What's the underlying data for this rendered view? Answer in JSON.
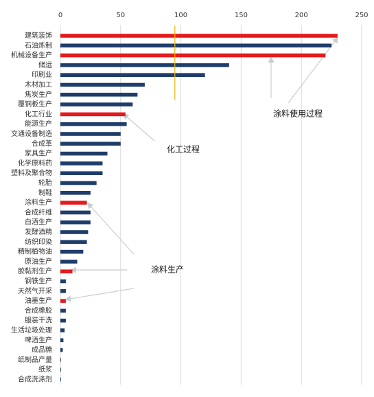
{
  "chart_data": {
    "type": "bar",
    "orientation": "horizontal",
    "categories": [
      "建筑装饰",
      "石油炼制",
      "机械设备生产",
      "储运",
      "印刷业",
      "木材加工",
      "焦炭生产",
      "覆铜板生产",
      "化工行业",
      "能源生产",
      "交通设备制造",
      "合成革",
      "家具生产",
      "化学原料药",
      "塑料及聚合物",
      "轮胎",
      "制鞋",
      "涂料生产",
      "合成纤维",
      "白酒生产",
      "发酵酒精",
      "纺织印染",
      "精制植物油",
      "原油生产",
      "胶黏剂生产",
      "钢铁生产",
      "天然气开采",
      "油墨生产",
      "合成橡胶",
      "服装干洗",
      "生活垃圾处理",
      "啤酒生产",
      "成品糖",
      "纸制品产量",
      "纸浆",
      "合成洗涤剂"
    ],
    "values": [
      230,
      225,
      220,
      140,
      120,
      70,
      64,
      60,
      54,
      55,
      50,
      50,
      39,
      35,
      35,
      30,
      25,
      22,
      25,
      25,
      23,
      22,
      19,
      14,
      10,
      4.5,
      4.5,
      4.5,
      4.5,
      4.5,
      3.5,
      2.5,
      2,
      0.5,
      0.5,
      0.5
    ],
    "colors": [
      "#e31a1c",
      "#1f3d6b",
      "#e31a1c",
      "#1f3d6b",
      "#1f3d6b",
      "#1f3d6b",
      "#1f3d6b",
      "#1f3d6b",
      "#e31a1c",
      "#1f3d6b",
      "#1f3d6b",
      "#1f3d6b",
      "#1f3d6b",
      "#1f3d6b",
      "#1f3d6b",
      "#1f3d6b",
      "#1f3d6b",
      "#e31a1c",
      "#1f3d6b",
      "#1f3d6b",
      "#1f3d6b",
      "#1f3d6b",
      "#1f3d6b",
      "#1f3d6b",
      "#e31a1c",
      "#1f3d6b",
      "#1f3d6b",
      "#e31a1c",
      "#1f3d6b",
      "#1f3d6b",
      "#1f3d6b",
      "#1f3d6b",
      "#1f3d6b",
      "#1f3d6b",
      "#1f3d6b",
      "#1f3d6b"
    ],
    "xlim": [
      0,
      250
    ],
    "xticks": [
      0,
      50,
      100,
      150,
      200,
      250
    ],
    "grid": true,
    "reference_line": {
      "value": 95,
      "color": "#f0b400"
    },
    "annotations": [
      "涂料使用过程",
      "化工过程",
      "涂料生产"
    ]
  }
}
